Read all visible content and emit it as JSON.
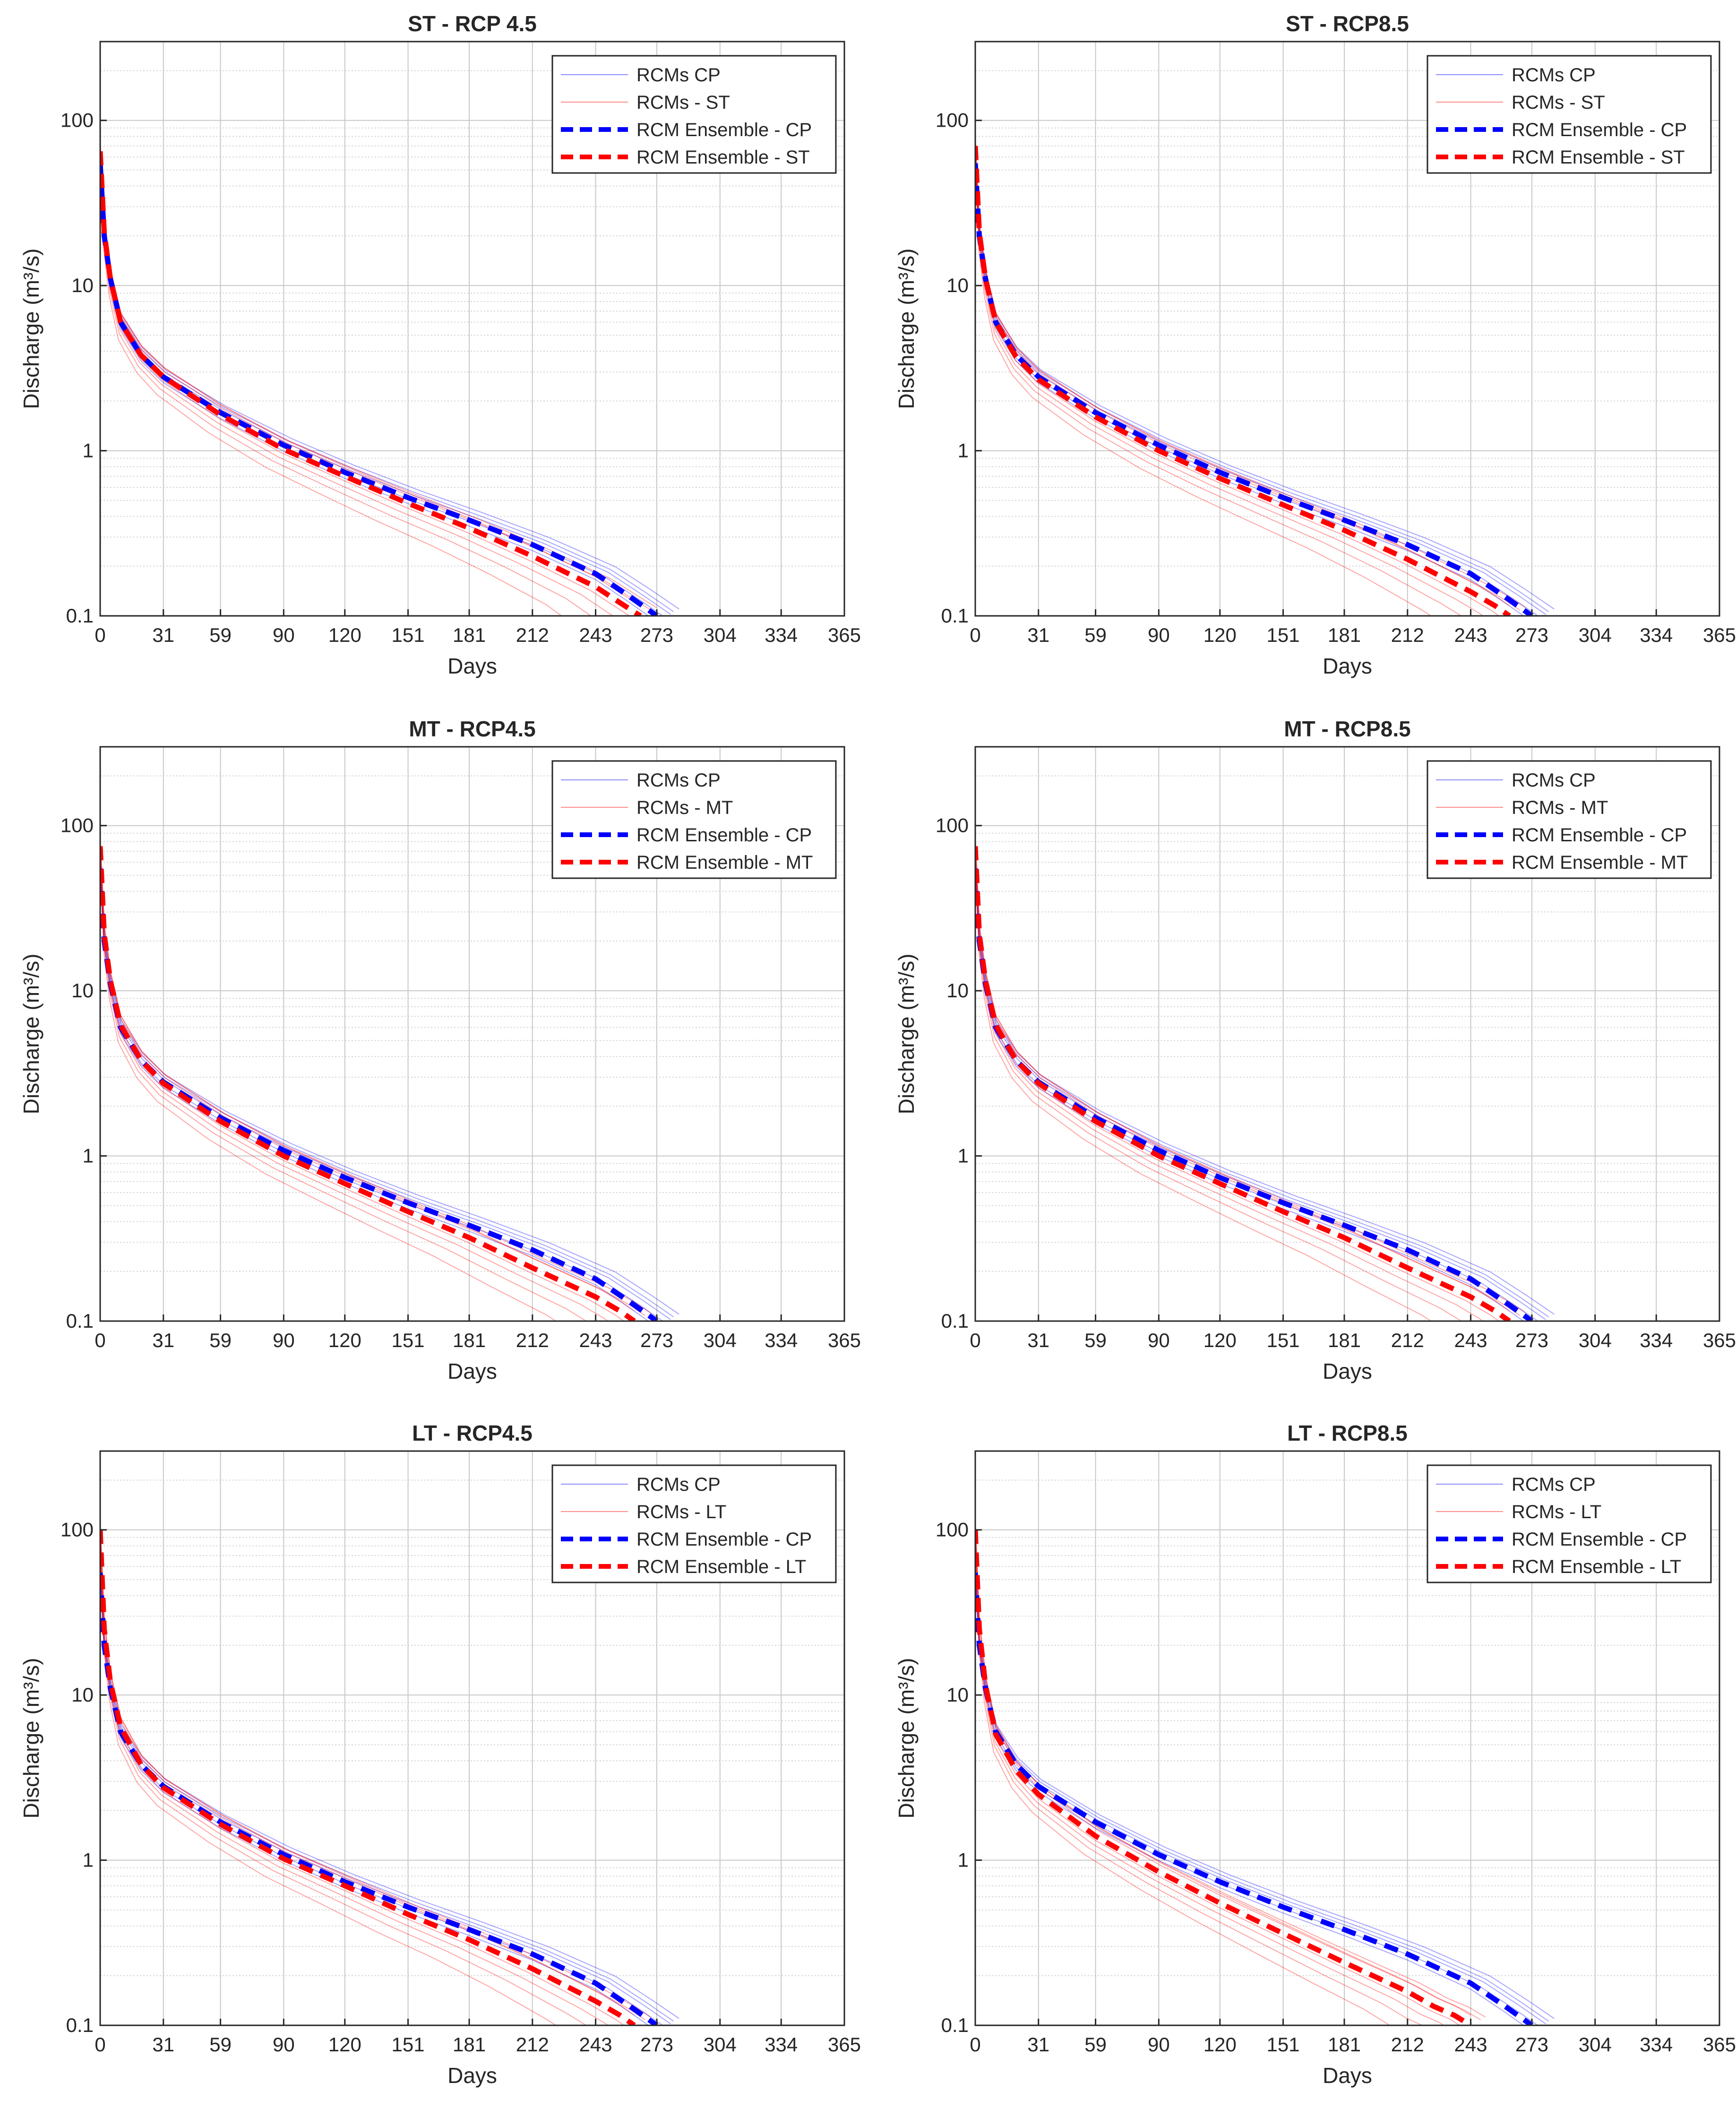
{
  "figure": {
    "colors": {
      "cp": "#0000ff",
      "future": "#ff0000",
      "grid": "#c8c8c8",
      "axis": "#262626",
      "text": "#262626"
    }
  },
  "chart_data": [
    {
      "type": "line",
      "title": "ST - RCP 4.5",
      "xlabel": "Days",
      "ylabel": "Discharge (m³/s)",
      "yscale": "log",
      "xlim": [
        0,
        365
      ],
      "ylim": [
        0.1,
        300
      ],
      "xticks": [
        0,
        31,
        59,
        90,
        120,
        151,
        181,
        212,
        243,
        273,
        304,
        334,
        365
      ],
      "yticks": [
        0.1,
        1,
        10,
        100
      ],
      "ytick_labels": [
        "0.1",
        "1",
        "10",
        "100"
      ],
      "grid": true,
      "legend_position": "top-right",
      "legend": [
        "RCMs CP",
        "RCMs - ST",
        "RCM Ensemble - CP",
        "RCM Ensemble - ST"
      ],
      "series": [
        {
          "name": "RCM Ensemble - CP",
          "style": "dashed",
          "color": "#0000ff",
          "x": [
            0,
            2,
            5,
            10,
            20,
            31,
            59,
            90,
            120,
            151,
            181,
            212,
            243,
            260,
            273
          ],
          "y": [
            55,
            20,
            11,
            6,
            3.8,
            2.8,
            1.7,
            1.08,
            0.74,
            0.52,
            0.38,
            0.27,
            0.18,
            0.13,
            0.1
          ]
        },
        {
          "name": "RCM Ensemble - ST",
          "style": "dashed",
          "color": "#ff0000",
          "x": [
            0,
            2,
            5,
            10,
            20,
            31,
            59,
            90,
            120,
            151,
            181,
            212,
            243,
            255,
            265
          ],
          "y": [
            65,
            21,
            11,
            6,
            3.8,
            2.8,
            1.65,
            1.02,
            0.7,
            0.48,
            0.34,
            0.23,
            0.15,
            0.12,
            0.1
          ]
        }
      ]
    },
    {
      "type": "line",
      "title": "ST - RCP8.5",
      "xlabel": "Days",
      "ylabel": "Discharge (m³/s)",
      "yscale": "log",
      "xlim": [
        0,
        365
      ],
      "ylim": [
        0.1,
        300
      ],
      "xticks": [
        0,
        31,
        59,
        90,
        120,
        151,
        181,
        212,
        243,
        273,
        304,
        334,
        365
      ],
      "yticks": [
        0.1,
        1,
        10,
        100
      ],
      "ytick_labels": [
        "0.1",
        "1",
        "10",
        "100"
      ],
      "grid": true,
      "legend_position": "top-right",
      "legend": [
        "RCMs CP",
        "RCMs - ST",
        "RCM Ensemble - CP",
        "RCM Ensemble - ST"
      ],
      "series": [
        {
          "name": "RCM Ensemble - CP",
          "style": "dashed",
          "color": "#0000ff",
          "x": [
            0,
            2,
            5,
            10,
            20,
            31,
            59,
            90,
            120,
            151,
            181,
            212,
            243,
            260,
            273
          ],
          "y": [
            55,
            20,
            11,
            6,
            3.8,
            2.8,
            1.7,
            1.08,
            0.74,
            0.52,
            0.38,
            0.27,
            0.18,
            0.13,
            0.1
          ]
        },
        {
          "name": "RCM Ensemble - ST",
          "style": "dashed",
          "color": "#ff0000",
          "x": [
            0,
            2,
            5,
            10,
            20,
            31,
            59,
            90,
            120,
            151,
            181,
            212,
            243,
            255,
            262
          ],
          "y": [
            70,
            21,
            11,
            6,
            3.7,
            2.7,
            1.6,
            1.0,
            0.68,
            0.47,
            0.33,
            0.22,
            0.14,
            0.115,
            0.1
          ]
        }
      ]
    },
    {
      "type": "line",
      "title": "MT - RCP4.5",
      "xlabel": "Days",
      "ylabel": "Discharge (m³/s)",
      "yscale": "log",
      "xlim": [
        0,
        365
      ],
      "ylim": [
        0.1,
        300
      ],
      "xticks": [
        0,
        31,
        59,
        90,
        120,
        151,
        181,
        212,
        243,
        273,
        304,
        334,
        365
      ],
      "yticks": [
        0.1,
        1,
        10,
        100
      ],
      "ytick_labels": [
        "0.1",
        "1",
        "10",
        "100"
      ],
      "grid": true,
      "legend_position": "top-right",
      "legend": [
        "RCMs CP",
        "RCMs - MT",
        "RCM Ensemble - CP",
        "RCM Ensemble - MT"
      ],
      "series": [
        {
          "name": "RCM Ensemble - CP",
          "style": "dashed",
          "color": "#0000ff",
          "x": [
            0,
            2,
            5,
            10,
            20,
            31,
            59,
            90,
            120,
            151,
            181,
            212,
            243,
            260,
            273
          ],
          "y": [
            55,
            20,
            11,
            6,
            3.8,
            2.8,
            1.7,
            1.08,
            0.74,
            0.52,
            0.38,
            0.27,
            0.18,
            0.13,
            0.1
          ]
        },
        {
          "name": "RCM Ensemble - MT",
          "style": "dashed",
          "color": "#ff0000",
          "x": [
            0,
            2,
            5,
            10,
            20,
            31,
            59,
            90,
            120,
            151,
            181,
            212,
            243,
            255,
            262
          ],
          "y": [
            75,
            22,
            11.5,
            6.2,
            3.8,
            2.75,
            1.62,
            1.0,
            0.68,
            0.46,
            0.32,
            0.21,
            0.14,
            0.115,
            0.1
          ]
        }
      ]
    },
    {
      "type": "line",
      "title": "MT - RCP8.5",
      "xlabel": "Days",
      "ylabel": "Discharge (m³/s)",
      "yscale": "log",
      "xlim": [
        0,
        365
      ],
      "ylim": [
        0.1,
        300
      ],
      "xticks": [
        0,
        31,
        59,
        90,
        120,
        151,
        181,
        212,
        243,
        273,
        304,
        334,
        365
      ],
      "yticks": [
        0.1,
        1,
        10,
        100
      ],
      "ytick_labels": [
        "0.1",
        "1",
        "10",
        "100"
      ],
      "grid": true,
      "legend_position": "top-right",
      "legend": [
        "RCMs CP",
        "RCMs - MT",
        "RCM Ensemble - CP",
        "RCM Ensemble - MT"
      ],
      "series": [
        {
          "name": "RCM Ensemble - CP",
          "style": "dashed",
          "color": "#0000ff",
          "x": [
            0,
            2,
            5,
            10,
            20,
            31,
            59,
            90,
            120,
            151,
            181,
            212,
            243,
            260,
            273
          ],
          "y": [
            55,
            20,
            11,
            6,
            3.8,
            2.8,
            1.7,
            1.08,
            0.74,
            0.52,
            0.38,
            0.27,
            0.18,
            0.13,
            0.1
          ]
        },
        {
          "name": "RCM Ensemble - MT",
          "style": "dashed",
          "color": "#ff0000",
          "x": [
            0,
            2,
            5,
            10,
            20,
            31,
            59,
            90,
            120,
            151,
            181,
            212,
            243,
            255,
            262
          ],
          "y": [
            75,
            22,
            11.5,
            6.2,
            3.8,
            2.75,
            1.62,
            1.0,
            0.68,
            0.46,
            0.32,
            0.21,
            0.14,
            0.115,
            0.1
          ]
        }
      ]
    },
    {
      "type": "line",
      "title": "LT - RCP4.5",
      "xlabel": "Days",
      "ylabel": "Discharge (m³/s)",
      "yscale": "log",
      "xlim": [
        0,
        365
      ],
      "ylim": [
        0.1,
        300
      ],
      "xticks": [
        0,
        31,
        59,
        90,
        120,
        151,
        181,
        212,
        243,
        273,
        304,
        334,
        365
      ],
      "yticks": [
        0.1,
        1,
        10,
        100
      ],
      "ytick_labels": [
        "0.1",
        "1",
        "10",
        "100"
      ],
      "grid": true,
      "legend_position": "top-right",
      "legend": [
        "RCMs CP",
        "RCMs - LT",
        "RCM Ensemble - CP",
        "RCM Ensemble - LT"
      ],
      "series": [
        {
          "name": "RCM Ensemble - CP",
          "style": "dashed",
          "color": "#0000ff",
          "x": [
            0,
            2,
            5,
            10,
            20,
            31,
            59,
            90,
            120,
            151,
            181,
            212,
            243,
            260,
            273
          ],
          "y": [
            55,
            20,
            11,
            6,
            3.8,
            2.8,
            1.7,
            1.08,
            0.74,
            0.52,
            0.38,
            0.27,
            0.18,
            0.13,
            0.1
          ]
        },
        {
          "name": "RCM Ensemble - LT",
          "style": "dashed",
          "color": "#ff0000",
          "x": [
            0,
            2,
            5,
            10,
            20,
            31,
            59,
            90,
            120,
            151,
            181,
            212,
            243,
            255,
            262
          ],
          "y": [
            100,
            25,
            12,
            6.4,
            3.8,
            2.75,
            1.65,
            1.02,
            0.7,
            0.47,
            0.33,
            0.22,
            0.14,
            0.115,
            0.1
          ]
        }
      ]
    },
    {
      "type": "line",
      "title": "LT - RCP8.5",
      "xlabel": "Days",
      "ylabel": "Discharge (m³/s)",
      "yscale": "log",
      "xlim": [
        0,
        365
      ],
      "ylim": [
        0.1,
        300
      ],
      "xticks": [
        0,
        31,
        59,
        90,
        120,
        151,
        181,
        212,
        243,
        273,
        304,
        334,
        365
      ],
      "yticks": [
        0.1,
        1,
        10,
        100
      ],
      "ytick_labels": [
        "0.1",
        "1",
        "10",
        "100"
      ],
      "grid": true,
      "legend_position": "top-right",
      "legend": [
        "RCMs CP",
        "RCMs - LT",
        "RCM Ensemble - CP",
        "RCM Ensemble - LT"
      ],
      "series": [
        {
          "name": "RCM Ensemble - CP",
          "style": "dashed",
          "color": "#0000ff",
          "x": [
            0,
            2,
            5,
            10,
            20,
            31,
            59,
            90,
            120,
            151,
            181,
            212,
            243,
            260,
            273
          ],
          "y": [
            55,
            20,
            11,
            6,
            3.8,
            2.8,
            1.7,
            1.08,
            0.74,
            0.52,
            0.38,
            0.27,
            0.18,
            0.13,
            0.1
          ]
        },
        {
          "name": "RCM Ensemble - LT",
          "style": "dashed",
          "color": "#ff0000",
          "x": [
            0,
            2,
            5,
            10,
            20,
            31,
            59,
            90,
            120,
            151,
            181,
            212,
            225,
            235,
            243
          ],
          "y": [
            100,
            25,
            11.5,
            5.8,
            3.5,
            2.5,
            1.4,
            0.85,
            0.55,
            0.36,
            0.24,
            0.16,
            0.13,
            0.115,
            0.1
          ]
        }
      ]
    }
  ]
}
